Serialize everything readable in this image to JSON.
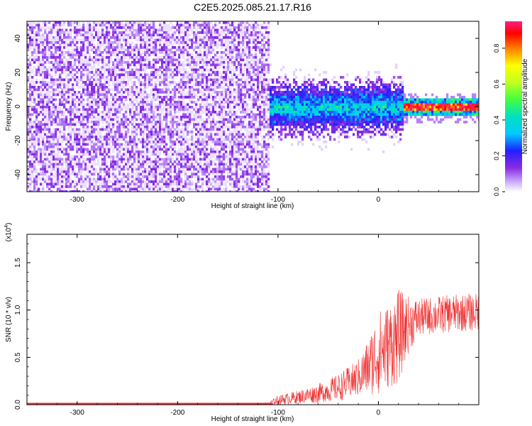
{
  "title": "C2E5.2025.085.21.17.R16",
  "chart_data": [
    {
      "type": "heatmap",
      "xlabel": "Height of straight line (km)",
      "ylabel": "Frequency (Hz)",
      "xlim": [
        -350,
        100
      ],
      "ylim": [
        -50,
        50
      ],
      "xticks": [
        -300,
        -200,
        -100,
        0
      ],
      "yticks": [
        -40,
        -20,
        0,
        20,
        40
      ],
      "colorbar": {
        "label": "Normalized spectral amplitude",
        "range": [
          0,
          0.95
        ],
        "ticks": [
          0.0,
          0.2,
          0.4,
          0.6,
          0.8
        ]
      },
      "regions": [
        {
          "x": [
            -350,
            -110
          ],
          "freq_span": [
            -50,
            50
          ],
          "typical_amplitude": 0.08,
          "description": "broadband noise"
        },
        {
          "x": [
            -110,
            25
          ],
          "freq_span": [
            -12,
            12
          ],
          "typical_amplitude": 0.25
        },
        {
          "x": [
            25,
            100
          ],
          "freq_span": [
            -3,
            3
          ],
          "typical_amplitude": 0.85
        }
      ]
    },
    {
      "type": "line",
      "xlabel": "Height of straight line (km)",
      "ylabel": "SNR (10 * v/v)",
      "multiplier": "(x10^4)",
      "multiplier_base": "(x10",
      "multiplier_exp": "4",
      "xlim": [
        -350,
        100
      ],
      "ylim": [
        0,
        1.8
      ],
      "xticks": [
        -300,
        -200,
        -100,
        0
      ],
      "yticks": [
        0.0,
        0.5,
        1.0,
        1.5
      ],
      "color": "#f03030",
      "series": [
        {
          "x": [
            -350,
            -300,
            -250,
            -200,
            -150,
            -110,
            -100,
            -80,
            -60,
            -40,
            -20,
            -10,
            0,
            10,
            20,
            30,
            40,
            60,
            80,
            100
          ],
          "y": [
            0.005,
            0.005,
            0.005,
            0.005,
            0.005,
            0.01,
            0.05,
            0.08,
            0.12,
            0.18,
            0.28,
            0.4,
            0.55,
            0.62,
            0.72,
            0.85,
            0.92,
            0.95,
            0.97,
            0.98
          ],
          "spread": [
            0.003,
            0.003,
            0.003,
            0.003,
            0.003,
            0.01,
            0.05,
            0.07,
            0.1,
            0.14,
            0.2,
            0.3,
            0.45,
            0.45,
            0.5,
            0.3,
            0.2,
            0.2,
            0.2,
            0.2
          ]
        }
      ]
    }
  ]
}
